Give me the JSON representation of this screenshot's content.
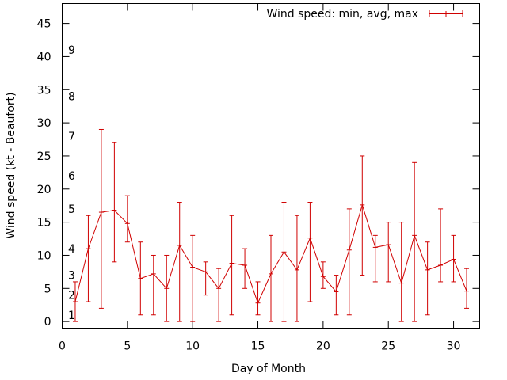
{
  "chart_data": {
    "type": "line",
    "title": "",
    "xlabel": "Day of Month",
    "ylabel": "Wind speed (kt - Beaufort)",
    "xlim": [
      0,
      32
    ],
    "ylim": [
      -1,
      48
    ],
    "xticks": [
      0,
      5,
      10,
      15,
      20,
      25,
      30
    ],
    "yticks": [
      0,
      5,
      10,
      15,
      20,
      25,
      30,
      35,
      40,
      45
    ],
    "beaufort_labels": [
      {
        "label": "1",
        "value": 1
      },
      {
        "label": "2",
        "value": 4
      },
      {
        "label": "3",
        "value": 7
      },
      {
        "label": "4",
        "value": 11
      },
      {
        "label": "5",
        "value": 17
      },
      {
        "label": "6",
        "value": 22
      },
      {
        "label": "7",
        "value": 28
      },
      {
        "label": "8",
        "value": 34
      },
      {
        "label": "9",
        "value": 41
      }
    ],
    "legend": {
      "label": "Wind speed: min, avg, max",
      "position": "top-right"
    },
    "series": [
      {
        "name": "Wind speed: min, avg, max",
        "color": "#d00000",
        "x": [
          1,
          2,
          3,
          4,
          5,
          6,
          7,
          8,
          9,
          10,
          11,
          12,
          13,
          14,
          15,
          16,
          17,
          18,
          19,
          20,
          21,
          22,
          23,
          24,
          25,
          26,
          27,
          28,
          29,
          30,
          31
        ],
        "avg": [
          3,
          11,
          16.5,
          16.8,
          14.8,
          6.5,
          7.2,
          5,
          11.5,
          8.2,
          7.5,
          5,
          8.8,
          8.5,
          2.8,
          7.2,
          10.5,
          7.8,
          12.6,
          6.8,
          4.5,
          10.8,
          17.6,
          11.2,
          11.6,
          5.8,
          13,
          7.8,
          8.5,
          9.4,
          4.6
        ],
        "min": [
          0,
          3,
          2,
          9,
          12,
          1,
          1,
          0,
          0,
          0,
          4,
          0,
          1,
          5,
          1,
          0,
          0,
          0,
          3,
          5,
          1,
          1,
          7,
          6,
          6,
          0,
          0,
          1,
          6,
          6,
          2
        ],
        "max": [
          6,
          16,
          29,
          27,
          19,
          12,
          10,
          10,
          18,
          13,
          9,
          8,
          16,
          11,
          6,
          13,
          18,
          16,
          18,
          9,
          7,
          17,
          25,
          13,
          15,
          15,
          24,
          12,
          17,
          13,
          8
        ]
      }
    ]
  }
}
